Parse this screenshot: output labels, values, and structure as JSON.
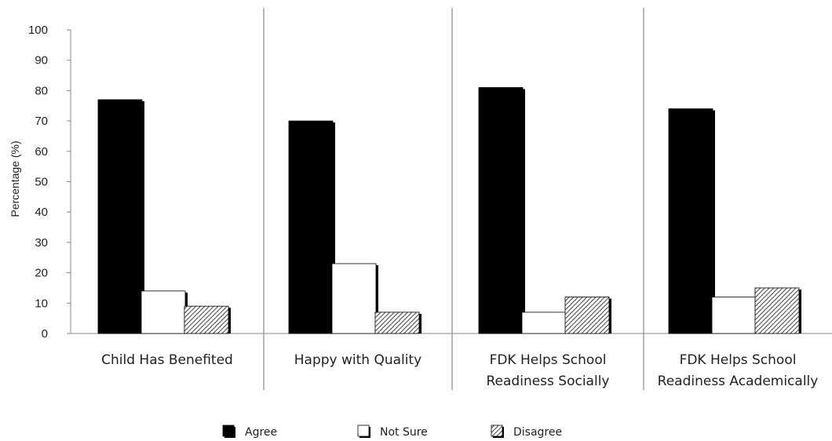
{
  "chart_data": {
    "type": "bar",
    "title": "",
    "xlabel": "",
    "ylabel": "Percentage (%)",
    "ylim": [
      0,
      100
    ],
    "yticks": [
      0,
      10,
      20,
      30,
      40,
      50,
      60,
      70,
      80,
      90,
      100
    ],
    "categories": [
      [
        "Child Has Benefited"
      ],
      [
        "Happy with Quality"
      ],
      [
        "FDK Helps School",
        "Readiness Socially"
      ],
      [
        "FDK Helps School",
        "Readiness Academically"
      ]
    ],
    "series": [
      {
        "name": "Agree",
        "values": [
          77,
          70,
          81,
          74
        ],
        "fill": "black"
      },
      {
        "name": "Not Sure",
        "values": [
          14,
          23,
          7,
          12
        ],
        "fill": "white"
      },
      {
        "name": "Disagree",
        "values": [
          9,
          7,
          12,
          15
        ],
        "fill": "hatch"
      }
    ],
    "legend": "bottom",
    "grid": false,
    "colors": {
      "agree": "#000000",
      "not_sure": "#ffffff",
      "disagree_hatch": "#555555",
      "separator": "#888888"
    }
  }
}
